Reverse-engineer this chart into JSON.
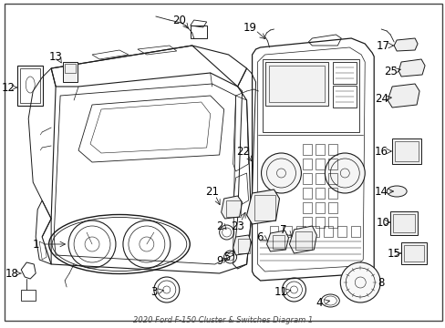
{
  "title": "2020 Ford F-150 Cluster & Switches Diagram 1",
  "bg": "#ffffff",
  "lc": "#1a1a1a",
  "tc": "#000000",
  "fig_w": 4.89,
  "fig_h": 3.6,
  "dpi": 100
}
